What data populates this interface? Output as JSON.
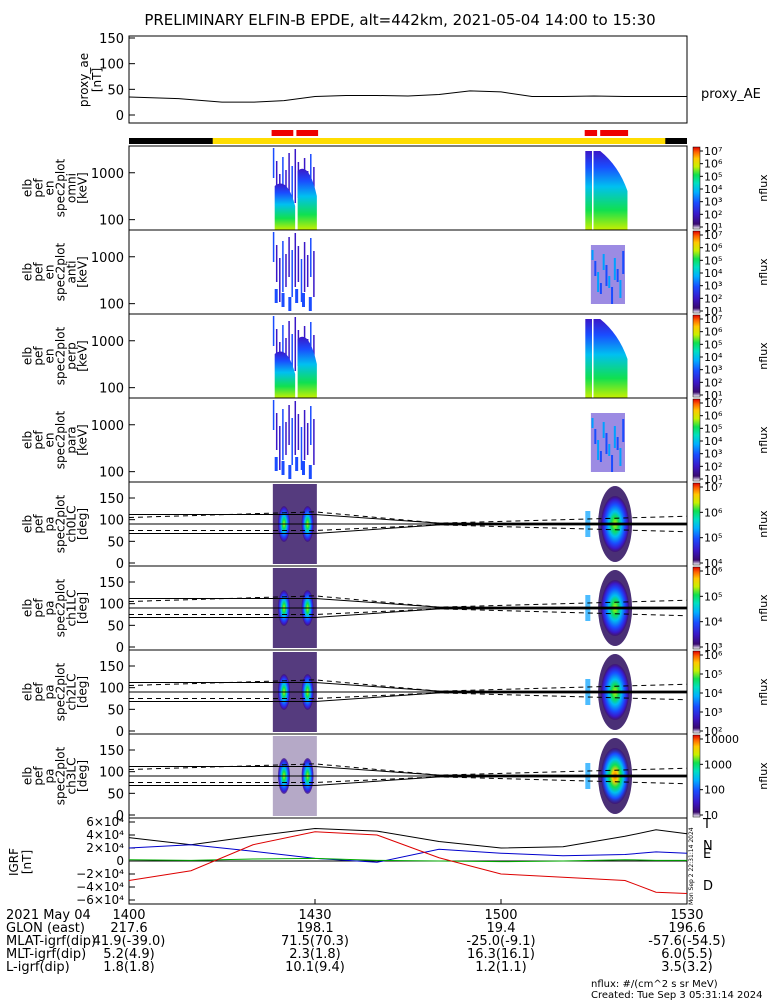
{
  "title": "PRELIMINARY ELFIN-B EPDE, alt=442km, 2021-05-04 14:00 to 15:30",
  "panels": {
    "proxy_ae": {
      "ylabel": [
        "proxy_ae",
        "[nT]"
      ],
      "yticks": [
        "150",
        "100",
        "50",
        "0"
      ],
      "legend": "proxy_AE"
    },
    "energy_panels": [
      {
        "ylabel": [
          "elb",
          "pef",
          "en",
          "spec2plot",
          "omni",
          "[keV]"
        ],
        "zlabels": [
          "10⁷",
          "10⁶",
          "10⁵",
          "10⁴",
          "10³",
          "10²",
          "10¹"
        ]
      },
      {
        "ylabel": [
          "elb",
          "pef",
          "en",
          "spec2plot",
          "anti",
          "[keV]"
        ],
        "zlabels": [
          "10⁷",
          "10⁶",
          "10⁵",
          "10⁴",
          "10³",
          "10²",
          "10¹"
        ]
      },
      {
        "ylabel": [
          "elb",
          "pef",
          "en",
          "spec2plot",
          "perp",
          "[keV]"
        ],
        "zlabels": [
          "10⁷",
          "10⁶",
          "10⁵",
          "10⁴",
          "10³",
          "10²",
          "10¹"
        ]
      },
      {
        "ylabel": [
          "elb",
          "pef",
          "en",
          "spec2plot",
          "para",
          "[keV]"
        ],
        "zlabels": [
          "10⁷",
          "10⁶",
          "10⁵",
          "10⁴",
          "10³",
          "10²",
          "10¹"
        ]
      }
    ],
    "energy_yticks": [
      "1000",
      "100"
    ],
    "pa_panels": [
      {
        "ylabel": [
          "elb",
          "pef",
          "pa",
          "spec2plot",
          "ch0LC",
          "[deg]"
        ],
        "zlabels": [
          "10⁷",
          "10⁶",
          "10⁵",
          "10⁴"
        ]
      },
      {
        "ylabel": [
          "elb",
          "pef",
          "pa",
          "spec2plot",
          "ch1LC",
          "[deg]"
        ],
        "zlabels": [
          "10⁶",
          "10⁵",
          "10⁴",
          "10³"
        ]
      },
      {
        "ylabel": [
          "elb",
          "pef",
          "pa",
          "spec2plot",
          "ch2LC",
          "[deg]"
        ],
        "zlabels": [
          "10⁶",
          "10⁵",
          "10⁴",
          "10³",
          "10²"
        ]
      },
      {
        "ylabel": [
          "elb",
          "pef",
          "pa",
          "spec2plot",
          "ch3LC",
          "[deg]"
        ],
        "zlabels": [
          "10000",
          "1000",
          "100",
          "10"
        ]
      }
    ],
    "pa_yticks": [
      "150",
      "100",
      "50",
      "0"
    ],
    "zunit": "nflux",
    "igrf": {
      "ylabel": [
        "IGRF",
        "[nT]"
      ],
      "yticks": [
        "6×10⁴",
        "4×10⁴",
        "2×10⁴",
        "0",
        "−2×10⁴",
        "−4×10⁴",
        "−6×10⁴"
      ],
      "legend": [
        {
          "label": "T",
          "color": "#000000"
        },
        {
          "label": "N",
          "color": "#0000cc"
        },
        {
          "label": "E",
          "color": "#00aa00"
        },
        {
          "label": "D",
          "color": "#dd0000"
        }
      ],
      "stamp": "Mon Sep  2 22:31:14 2024"
    }
  },
  "xaxis": {
    "rows": [
      {
        "label": "2021 May 04",
        "values": [
          "1400",
          "1430",
          "1500",
          "1530"
        ]
      },
      {
        "label": "GLON (east)",
        "values": [
          "217.6",
          "198.1",
          "19.4",
          "196.6"
        ]
      },
      {
        "label": "MLAT-igrf(dip)",
        "values": [
          "41.9(-39.0)",
          "71.5(70.3)",
          "-25.0(-9.1)",
          "-57.6(-54.5)"
        ]
      },
      {
        "label": "MLT-igrf(dip)",
        "values": [
          "5.2(4.9)",
          "2.3(1.8)",
          "16.3(16.1)",
          "6.0(5.5)"
        ]
      },
      {
        "label": "L-igrf(dip)",
        "values": [
          "1.8(1.8)",
          "10.1(9.4)",
          "1.2(1.1)",
          "3.5(3.2)"
        ]
      }
    ]
  },
  "footer": {
    "units": "nflux: #/(cm^2 s sr MeV)",
    "created": "Created: Tue Sep  3 05:31:14 2024"
  },
  "colors": {
    "status_black": "#000000",
    "status_yellow": "#ffdd00",
    "science_red": "#ee0000",
    "colorbar": [
      "#ffffff",
      "#2a0a5e",
      "#3a0aa0",
      "#1a3cff",
      "#00a0ff",
      "#00e0d0",
      "#00e060",
      "#c8f000",
      "#ffd000",
      "#ff7000",
      "#e00000"
    ]
  },
  "chart_data": {
    "type": "heatmap",
    "time_range": [
      "2021-05-04 14:00",
      "2021-05-04 15:30"
    ],
    "proxy_ae": {
      "name": "proxy_AE",
      "time_min": [
        0,
        8,
        15,
        20,
        25,
        30,
        35,
        40,
        45,
        50,
        55,
        60,
        65,
        70,
        75,
        80,
        85,
        90
      ],
      "values": [
        35,
        32,
        25,
        25,
        28,
        36,
        38,
        38,
        37,
        40,
        47,
        45,
        36,
        36,
        37,
        36,
        36,
        36
      ],
      "ylim": [
        0,
        150
      ]
    },
    "science_zones_min": [
      [
        23.0,
        26.5
      ],
      [
        27.0,
        30.5
      ],
      [
        73.5,
        75.5
      ],
      [
        76.0,
        80.5
      ]
    ],
    "loss_cone_deg": {
      "time_min": [
        0,
        30,
        50,
        90
      ],
      "lc": [
        68,
        68,
        88,
        88
      ],
      "alc": [
        112,
        112,
        92,
        92
      ],
      "dashed_lc": [
        75,
        75,
        88,
        72
      ],
      "dashed_alc": [
        105,
        118,
        92,
        108
      ],
      "ninety": [
        90,
        90,
        90,
        90
      ]
    },
    "igrf": {
      "time_min": [
        0,
        10,
        20,
        30,
        40,
        50,
        60,
        70,
        80,
        85,
        90
      ],
      "T": [
        36000,
        25000,
        38000,
        50000,
        46000,
        30000,
        20000,
        22000,
        38000,
        48000,
        42000
      ],
      "N": [
        20000,
        25000,
        15000,
        4000,
        -2000,
        18000,
        12000,
        8000,
        10000,
        14000,
        12000
      ],
      "E": [
        2000,
        1000,
        3000,
        4000,
        1000,
        0,
        -1000,
        0,
        2000,
        1000,
        1000
      ],
      "D": [
        -30000,
        -15000,
        25000,
        45000,
        40000,
        5000,
        -20000,
        -25000,
        -30000,
        -48000,
        -50000
      ],
      "ylim": [
        -60000,
        60000
      ]
    }
  }
}
